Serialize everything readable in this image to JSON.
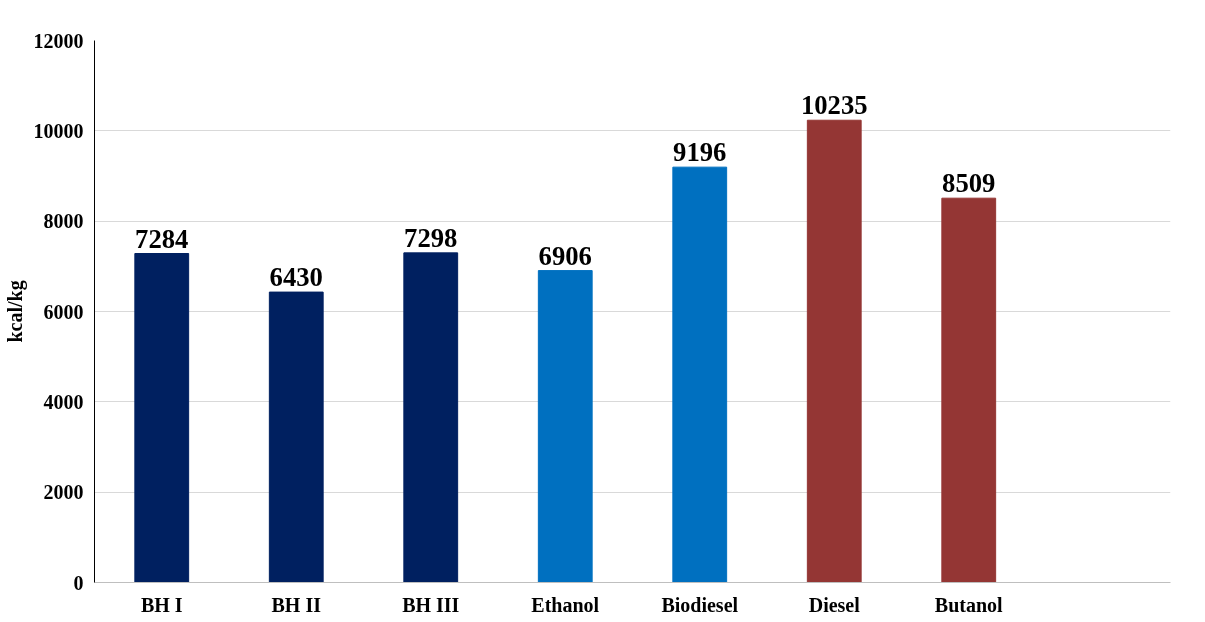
{
  "chart_data": {
    "type": "bar",
    "ylabel": "kcal/kg",
    "categories": [
      "BH I",
      "BH II",
      "BH III",
      "Ethanol",
      "Biodiesel",
      "Diesel",
      "Butanol",
      null
    ],
    "values": [
      7284,
      6430,
      7298,
      6906,
      9196,
      10235,
      8509,
      null
    ],
    "colors": [
      "#002060",
      "#002060",
      "#002060",
      "#0070c0",
      "#0070c0",
      "#943634",
      "#943634",
      "#943634"
    ],
    "ylim": [
      0,
      12000
    ],
    "yticks": [
      0,
      2000,
      4000,
      6000,
      8000,
      10000,
      12000
    ],
    "grid": "y",
    "data_labels": true
  }
}
